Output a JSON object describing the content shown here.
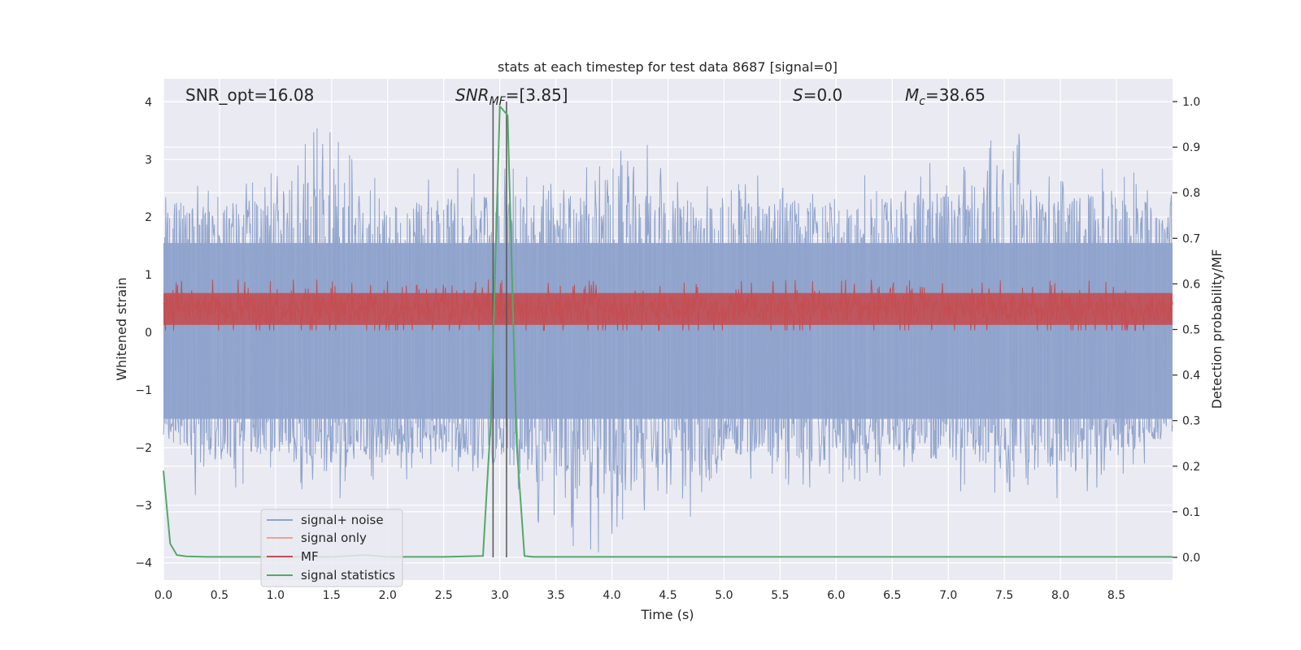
{
  "chart_data": {
    "type": "line",
    "title": "stats at each timestep for test data 8687 [signal=0]",
    "xlabel": "Time (s)",
    "ylabel": "Whitened strain",
    "ylabel_right": "Detection probability/MF",
    "xlim": [
      0,
      9.0
    ],
    "ylim": [
      -4.3,
      4.4
    ],
    "ylim_right": [
      -0.05,
      1.05
    ],
    "grid": true,
    "legend_position": "lower-left",
    "x_ticks": [
      0.0,
      0.5,
      1.0,
      1.5,
      2.0,
      2.5,
      3.0,
      3.5,
      4.0,
      4.5,
      5.0,
      5.5,
      6.0,
      6.5,
      7.0,
      7.5,
      8.0,
      8.5
    ],
    "x_tick_labels": [
      "0.0",
      "0.5",
      "1.0",
      "1.5",
      "2.0",
      "2.5",
      "3.0",
      "3.5",
      "4.0",
      "4.5",
      "5.0",
      "5.5",
      "6.0",
      "6.5",
      "7.0",
      "7.5",
      "8.0",
      "8.5"
    ],
    "y_ticks": [
      -4,
      -3,
      -2,
      -1,
      0,
      1,
      2,
      3,
      4
    ],
    "y_tick_labels": [
      "−4",
      "−3",
      "−2",
      "−1",
      "0",
      "1",
      "2",
      "3",
      "4"
    ],
    "y_ticks_right": [
      0.0,
      0.1,
      0.2,
      0.3,
      0.4,
      0.5,
      0.6,
      0.7,
      0.8,
      0.9,
      1.0
    ],
    "y_tick_labels_right": [
      "0.0",
      "0.1",
      "0.2",
      "0.3",
      "0.4",
      "0.5",
      "0.6",
      "0.7",
      "0.8",
      "0.9",
      "1.0"
    ],
    "annotations": [
      {
        "id": "snr-opt",
        "text": "SNR_opt=16.08"
      },
      {
        "id": "snr-mf",
        "text": "SNR_MF=[3.85]"
      },
      {
        "id": "s-value",
        "text": "S=0.0"
      },
      {
        "id": "mc-value",
        "text": "M_c=38.65"
      }
    ],
    "vertical_lines_x": [
      2.94,
      3.06
    ],
    "series": [
      {
        "name": "signal+ noise",
        "axis": "left",
        "color": "#8fa3cc",
        "description_note": "dense noise, approx range -3.9 to 4.0 across full span",
        "envelope_upper": [
          [
            0.0,
            2.5
          ],
          [
            0.5,
            2.6
          ],
          [
            1.0,
            2.8
          ],
          [
            1.4,
            3.7
          ],
          [
            2.0,
            2.6
          ],
          [
            2.5,
            2.8
          ],
          [
            3.0,
            3.0
          ],
          [
            3.5,
            2.6
          ],
          [
            4.12,
            4.0
          ],
          [
            4.5,
            2.8
          ],
          [
            5.0,
            2.6
          ],
          [
            5.5,
            2.8
          ],
          [
            6.0,
            2.6
          ],
          [
            6.5,
            2.9
          ],
          [
            7.0,
            3.0
          ],
          [
            7.45,
            3.8
          ],
          [
            8.0,
            2.8
          ],
          [
            8.5,
            2.9
          ],
          [
            9.0,
            2.6
          ]
        ],
        "envelope_lower": [
          [
            0.0,
            -1.9
          ],
          [
            0.3,
            -3.0
          ],
          [
            1.0,
            -2.4
          ],
          [
            1.45,
            -3.1
          ],
          [
            2.0,
            -2.6
          ],
          [
            2.5,
            -2.5
          ],
          [
            3.0,
            -2.9
          ],
          [
            3.62,
            -3.9
          ],
          [
            4.08,
            -3.8
          ],
          [
            4.5,
            -2.8
          ],
          [
            4.82,
            -3.7
          ],
          [
            5.0,
            -2.6
          ],
          [
            5.5,
            -2.6
          ],
          [
            6.0,
            -3.0
          ],
          [
            6.5,
            -2.4
          ],
          [
            7.0,
            -2.8
          ],
          [
            7.5,
            -2.8
          ],
          [
            8.0,
            -3.0
          ],
          [
            8.5,
            -2.6
          ],
          [
            9.0,
            -2.0
          ]
        ]
      },
      {
        "name": "signal only",
        "axis": "left",
        "color": "#e8a58c",
        "values": []
      },
      {
        "name": "MF",
        "axis": "right",
        "color": "#c44e52",
        "description_note": "dense noise roughly between 0.5 and 0.6 on right axis",
        "range": [
          0.5,
          0.6
        ]
      },
      {
        "name": "signal statistics",
        "axis": "right",
        "color": "#55a868",
        "x": [
          0.0,
          0.06,
          0.12,
          0.2,
          0.4,
          1.0,
          1.5,
          1.8,
          2.0,
          2.5,
          2.85,
          2.92,
          3.0,
          3.07,
          3.15,
          3.22,
          3.3,
          4.0,
          5.0,
          6.0,
          7.0,
          8.0,
          9.0
        ],
        "y": [
          0.19,
          0.03,
          0.005,
          0.002,
          0.001,
          0.001,
          0.001,
          0.005,
          0.001,
          0.001,
          0.003,
          0.3,
          0.99,
          0.97,
          0.25,
          0.003,
          0.001,
          0.001,
          0.001,
          0.001,
          0.001,
          0.001,
          0.001
        ]
      }
    ]
  }
}
